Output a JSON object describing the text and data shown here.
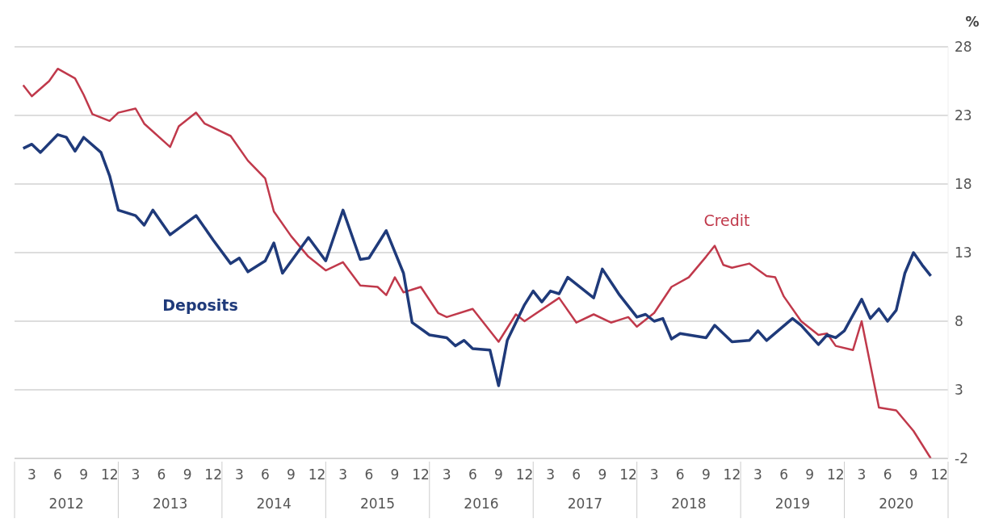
{
  "chart_data": {
    "type": "line",
    "ylabel": "%",
    "grid": "y",
    "xlim": [
      "2012-01",
      "2021-01"
    ],
    "xticks": [
      {
        "value": "2012-03",
        "label": "3"
      },
      {
        "value": "2012-06",
        "label": "6"
      },
      {
        "value": "2012-09",
        "label": "9"
      },
      {
        "value": "2012-12",
        "label": "12"
      },
      {
        "value": "2013-03",
        "label": "3"
      },
      {
        "value": "2013-06",
        "label": "6"
      },
      {
        "value": "2013-09",
        "label": "9"
      },
      {
        "value": "2013-12",
        "label": "12"
      },
      {
        "value": "2014-03",
        "label": "3"
      },
      {
        "value": "2014-06",
        "label": "6"
      },
      {
        "value": "2014-09",
        "label": "9"
      },
      {
        "value": "2014-12",
        "label": "12"
      },
      {
        "value": "2015-03",
        "label": "3"
      },
      {
        "value": "2015-06",
        "label": "6"
      },
      {
        "value": "2015-09",
        "label": "9"
      },
      {
        "value": "2015-12",
        "label": "12"
      },
      {
        "value": "2016-03",
        "label": "3"
      },
      {
        "value": "2016-06",
        "label": "6"
      },
      {
        "value": "2016-09",
        "label": "9"
      },
      {
        "value": "2016-12",
        "label": "12"
      },
      {
        "value": "2017-03",
        "label": "3"
      },
      {
        "value": "2017-06",
        "label": "6"
      },
      {
        "value": "2017-09",
        "label": "9"
      },
      {
        "value": "2017-12",
        "label": "12"
      },
      {
        "value": "2018-03",
        "label": "3"
      },
      {
        "value": "2018-06",
        "label": "6"
      },
      {
        "value": "2018-09",
        "label": "9"
      },
      {
        "value": "2018-12",
        "label": "12"
      },
      {
        "value": "2019-03",
        "label": "3"
      },
      {
        "value": "2019-06",
        "label": "6"
      },
      {
        "value": "2019-09",
        "label": "9"
      },
      {
        "value": "2019-12",
        "label": "12"
      },
      {
        "value": "2020-03",
        "label": "3"
      },
      {
        "value": "2020-06",
        "label": "6"
      },
      {
        "value": "2020-09",
        "label": "9"
      },
      {
        "value": "2020-12",
        "label": "12"
      }
    ],
    "x2lim": [
      "2012-01",
      "2021-01"
    ],
    "x2ticks": [
      {
        "value": "2012-07",
        "label": "2012"
      },
      {
        "value": "2013-07",
        "label": "2013"
      },
      {
        "value": "2014-07",
        "label": "2014"
      },
      {
        "value": "2015-07",
        "label": "2015"
      },
      {
        "value": "2016-07",
        "label": "2016"
      },
      {
        "value": "2017-07",
        "label": "2017"
      },
      {
        "value": "2018-07",
        "label": "2018"
      },
      {
        "value": "2019-07",
        "label": "2019"
      },
      {
        "value": "2020-07",
        "label": "2020"
      }
    ],
    "ylim": [
      -2,
      28
    ],
    "yticks": [
      -2,
      3,
      8,
      13,
      18,
      23,
      28
    ],
    "series": [
      {
        "name": "Credit",
        "color": "#c0394b",
        "x": [
          "2012-02",
          "2012-03",
          "2012-05",
          "2012-06",
          "2012-08",
          "2012-09",
          "2012-10",
          "2012-12",
          "2013-01",
          "2013-03",
          "2013-04",
          "2013-07",
          "2013-08",
          "2013-10",
          "2013-11",
          "2014-02",
          "2014-04",
          "2014-06",
          "2014-07",
          "2014-09",
          "2014-11",
          "2015-01",
          "2015-03",
          "2015-05",
          "2015-07",
          "2015-08",
          "2015-09",
          "2015-10",
          "2015-12",
          "2016-02",
          "2016-03",
          "2016-06",
          "2016-09",
          "2016-11",
          "2016-12",
          "2017-04",
          "2017-06",
          "2017-08",
          "2017-10",
          "2017-12",
          "2018-01",
          "2018-03",
          "2018-05",
          "2018-07",
          "2018-09",
          "2018-10",
          "2018-11",
          "2018-12",
          "2019-02",
          "2019-04",
          "2019-05",
          "2019-06",
          "2019-08",
          "2019-10",
          "2019-11",
          "2019-12",
          "2020-02",
          "2020-03",
          "2020-05",
          "2020-07",
          "2020-09",
          "2020-11"
        ],
        "values": [
          25.2,
          24.4,
          25.5,
          26.4,
          25.7,
          24.5,
          23.1,
          22.6,
          23.2,
          23.5,
          22.4,
          20.7,
          22.2,
          23.2,
          22.4,
          21.5,
          19.7,
          18.4,
          16.0,
          14.2,
          12.7,
          11.7,
          12.3,
          10.6,
          10.5,
          9.9,
          11.2,
          10.1,
          10.5,
          8.6,
          8.3,
          8.9,
          6.5,
          8.5,
          8.0,
          9.7,
          7.9,
          8.5,
          7.9,
          8.3,
          7.6,
          8.6,
          10.5,
          11.2,
          12.7,
          13.5,
          12.1,
          11.9,
          12.2,
          11.3,
          11.2,
          9.8,
          8.0,
          7.0,
          7.1,
          6.2,
          5.9,
          8.0,
          1.7,
          1.5,
          0.0,
          -2.0
        ]
      },
      {
        "name": "Deposits",
        "color": "#1f3a7a",
        "x": [
          "2012-02",
          "2012-03",
          "2012-04",
          "2012-06",
          "2012-07",
          "2012-08",
          "2012-09",
          "2012-11",
          "2012-12",
          "2013-01",
          "2013-03",
          "2013-04",
          "2013-05",
          "2013-07",
          "2013-10",
          "2013-12",
          "2014-02",
          "2014-03",
          "2014-04",
          "2014-06",
          "2014-07",
          "2014-08",
          "2014-11",
          "2015-01",
          "2015-03",
          "2015-05",
          "2015-06",
          "2015-08",
          "2015-10",
          "2015-11",
          "2016-01",
          "2016-03",
          "2016-04",
          "2016-05",
          "2016-06",
          "2016-08",
          "2016-09",
          "2016-10",
          "2016-12",
          "2017-01",
          "2017-02",
          "2017-03",
          "2017-04",
          "2017-05",
          "2017-07",
          "2017-08",
          "2017-09",
          "2017-11",
          "2018-01",
          "2018-02",
          "2018-03",
          "2018-04",
          "2018-05",
          "2018-06",
          "2018-09",
          "2018-10",
          "2018-12",
          "2019-02",
          "2019-03",
          "2019-04",
          "2019-07",
          "2019-08",
          "2019-10",
          "2019-11",
          "2019-12",
          "2020-01",
          "2020-03",
          "2020-04",
          "2020-05",
          "2020-06",
          "2020-07",
          "2020-08",
          "2020-09",
          "2020-10",
          "2020-11"
        ],
        "values": [
          20.6,
          20.9,
          20.3,
          21.6,
          21.4,
          20.4,
          21.4,
          20.3,
          18.6,
          16.1,
          15.7,
          15.0,
          16.1,
          14.3,
          15.7,
          13.9,
          12.2,
          12.6,
          11.6,
          12.4,
          13.7,
          11.5,
          14.1,
          12.4,
          16.1,
          12.5,
          12.6,
          14.6,
          11.5,
          7.9,
          7.0,
          6.8,
          6.2,
          6.6,
          6.0,
          5.9,
          3.3,
          6.6,
          9.2,
          10.2,
          9.4,
          10.2,
          10.0,
          11.2,
          10.2,
          9.7,
          11.8,
          9.9,
          8.3,
          8.5,
          8.0,
          8.2,
          6.7,
          7.1,
          6.8,
          7.7,
          6.5,
          6.6,
          7.3,
          6.6,
          8.2,
          7.7,
          6.3,
          7.0,
          6.8,
          7.3,
          9.6,
          8.2,
          8.9,
          8.0,
          8.8,
          11.5,
          13.0,
          12.1,
          11.3
        ]
      }
    ]
  }
}
